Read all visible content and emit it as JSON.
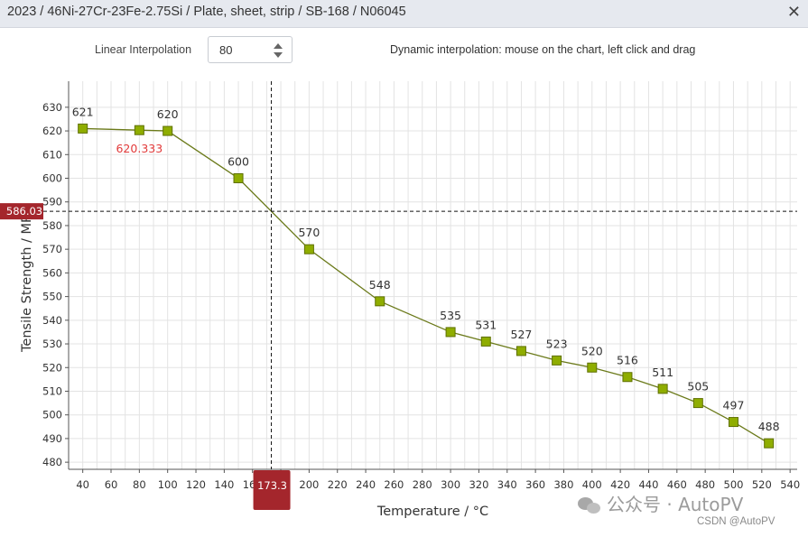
{
  "window": {
    "title": "2023 / 46Ni-27Cr-23Fe-2.75Si / Plate, sheet, strip / SB-168 / N06045",
    "close_glyph": "✕"
  },
  "controls": {
    "interp_label": "Linear Interpolation",
    "interp_value": "80",
    "dynamic_hint": "Dynamic interpolation: mouse on the chart, left click and drag"
  },
  "watermark": {
    "text": "公众号 · AutoPV",
    "csdn": "CSDN @AutoPV"
  },
  "chart_data": {
    "type": "line",
    "xlabel": "Temperature / °C",
    "ylabel": "Tensile Strength / MPa",
    "xlim": [
      30,
      545
    ],
    "ylim": [
      477,
      641
    ],
    "xticks": [
      40,
      60,
      80,
      100,
      120,
      140,
      160,
      180,
      200,
      220,
      240,
      260,
      280,
      300,
      320,
      340,
      360,
      380,
      400,
      420,
      440,
      460,
      480,
      500,
      520,
      540
    ],
    "yticks": [
      480,
      490,
      500,
      510,
      520,
      530,
      540,
      550,
      560,
      570,
      580,
      590,
      600,
      610,
      620,
      630
    ],
    "grid": true,
    "series": [
      {
        "x": [
          40,
          100,
          150,
          200,
          250,
          300,
          325,
          350,
          375,
          400,
          425,
          450,
          475,
          500,
          525
        ],
        "y": [
          621,
          620,
          600,
          570,
          548,
          535,
          531,
          527,
          523,
          520,
          516,
          511,
          505,
          497,
          488
        ],
        "labels": [
          "621",
          "620",
          "600",
          "570",
          "548",
          "535",
          "531",
          "527",
          "523",
          "520",
          "516",
          "511",
          "505",
          "497",
          "488"
        ],
        "line_color": "#6b7a1a",
        "marker_color": "#8fad00"
      }
    ],
    "interpolated_point": {
      "x": 80,
      "y": 620.333,
      "label": "620.333",
      "color": "#e23a3a"
    },
    "crosshair": {
      "x": 173.3,
      "y": 586.03,
      "x_label": "173.3",
      "y_label": "586.03",
      "color": "#a4262c"
    }
  }
}
